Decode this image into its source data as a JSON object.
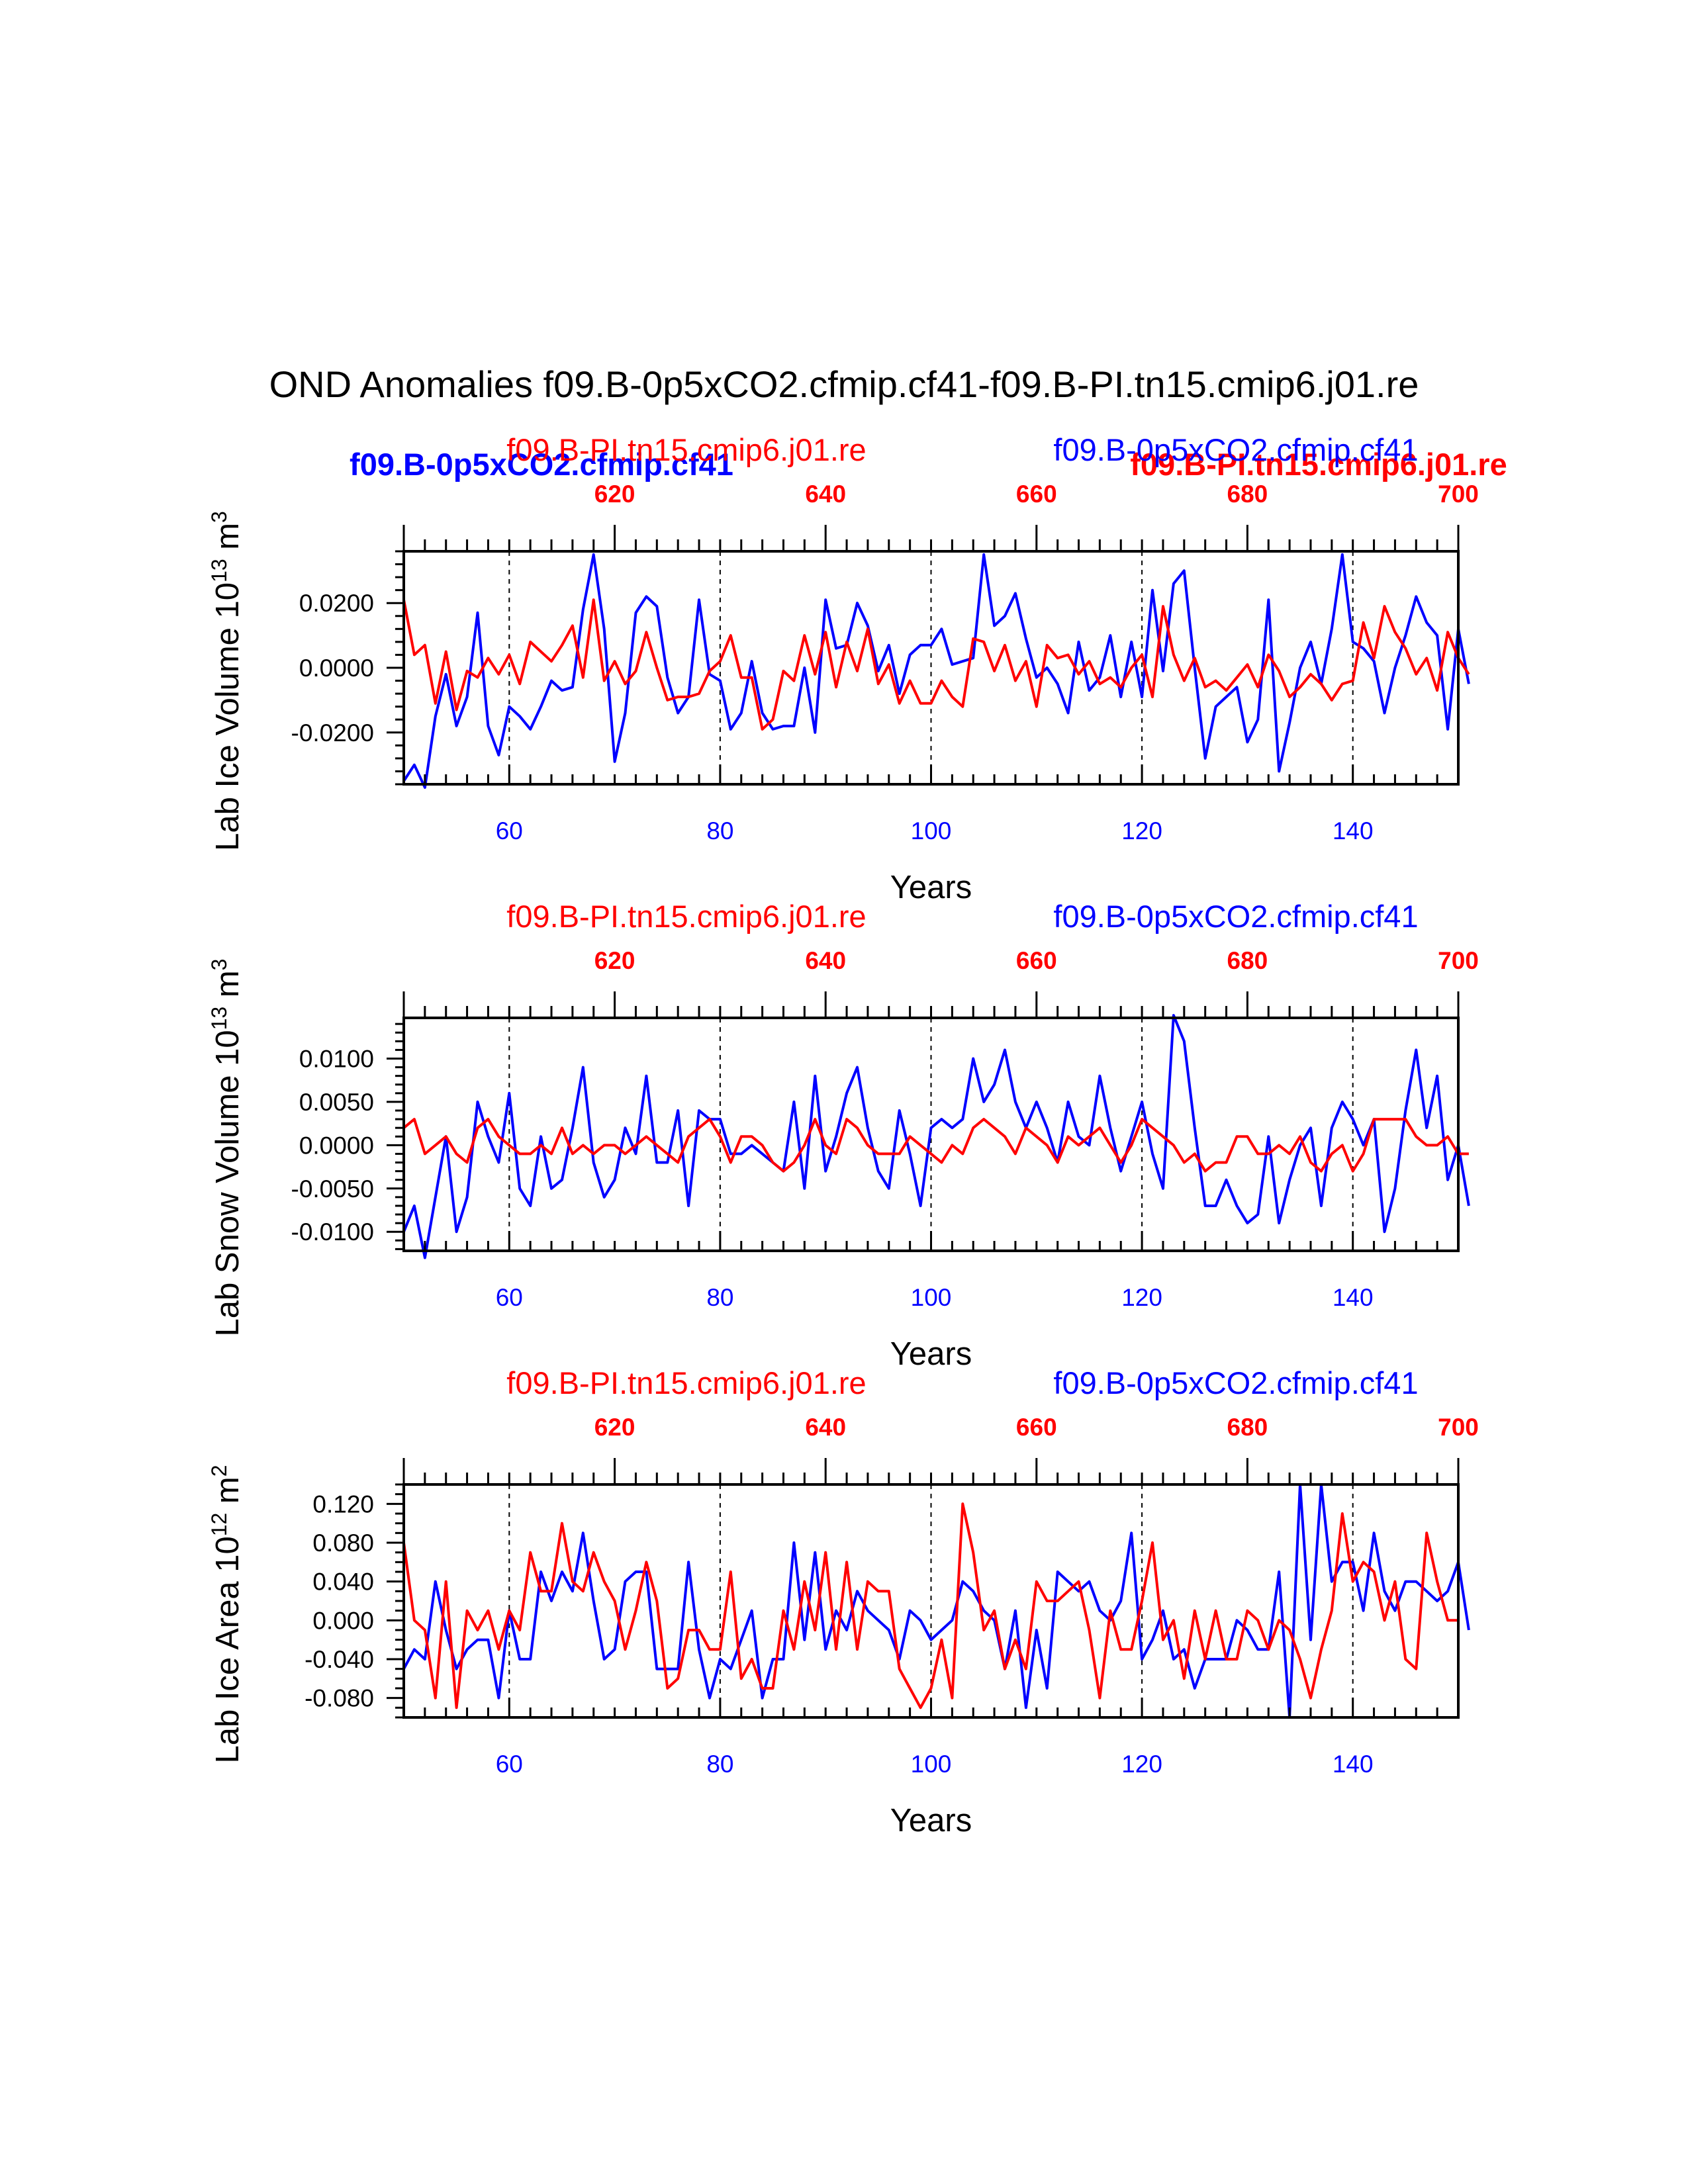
{
  "title": "OND Anomalies f09.B-0p5xCO2.cfmip.cf41-f09.B-PI.tn15.cmip6.j01.re",
  "colors": {
    "blue": "#0000ff",
    "red": "#ff0000",
    "black": "#000000"
  },
  "overlay_labels": {
    "blue": "f09.B-0p5xCO2.cfmip.cf41",
    "red": "f09.B-PI.tn15.cmip6.j01.re"
  },
  "chart_data": [
    {
      "type": "line",
      "ylabel_main": "Lab Ice Volume 10",
      "ylabel_exp": "13",
      "ylabel_unit": " m",
      "ylabel_unit_exp": "3",
      "xlabel": "Years",
      "top_left_label": "f09.B-PI.tn15.cmip6.j01.re",
      "top_right_label": "f09.B-0p5xCO2.cfmip.cf41",
      "xlim": [
        50,
        150
      ],
      "top_xlim": [
        600,
        700
      ],
      "ylim": [
        -0.036,
        0.036
      ],
      "yticks": [
        -0.02,
        0.0,
        0.02
      ],
      "ytick_labels": [
        "-0.0200",
        "0.0000",
        "0.0200"
      ],
      "yminor_step": 0.004,
      "bottom_ticks": [
        60,
        80,
        100,
        120,
        140
      ],
      "top_ticks": [
        620,
        640,
        660,
        680,
        700
      ],
      "vlines": [
        60,
        80,
        100,
        120,
        140
      ],
      "x_start": 50,
      "series": [
        {
          "name": "f09.B-0p5xCO2.cfmip.cf41",
          "color": "#0000ff",
          "values": [
            -0.035,
            -0.03,
            -0.037,
            -0.015,
            -0.002,
            -0.018,
            -0.009,
            0.017,
            -0.018,
            -0.027,
            -0.012,
            -0.015,
            -0.019,
            -0.012,
            -0.004,
            -0.007,
            -0.006,
            0.018,
            0.035,
            0.012,
            -0.029,
            -0.014,
            0.017,
            0.022,
            0.019,
            -0.003,
            -0.014,
            -0.009,
            0.021,
            -0.002,
            -0.004,
            -0.019,
            -0.014,
            0.002,
            -0.014,
            -0.019,
            -0.018,
            -0.018,
            0.0,
            -0.02,
            0.021,
            0.006,
            0.007,
            0.02,
            0.013,
            -0.001,
            0.007,
            -0.008,
            0.004,
            0.007,
            0.007,
            0.012,
            0.001,
            0.002,
            0.003,
            0.035,
            0.013,
            0.016,
            0.023,
            0.009,
            -0.003,
            0.0,
            -0.005,
            -0.014,
            0.008,
            -0.007,
            -0.003,
            0.01,
            -0.009,
            0.008,
            -0.009,
            0.024,
            -0.001,
            0.026,
            0.03,
            0.0,
            -0.028,
            -0.012,
            -0.009,
            -0.006,
            -0.023,
            -0.016,
            0.021,
            -0.032,
            -0.017,
            0.0,
            0.008,
            -0.005,
            0.012,
            0.035,
            0.008,
            0.006,
            0.002,
            -0.014,
            0.0,
            0.01,
            0.022,
            0.014,
            0.01,
            -0.019,
            0.012,
            -0.005
          ]
        },
        {
          "name": "f09.B-PI.tn15.cmip6.j01.re",
          "color": "#ff0000",
          "values": [
            0.021,
            0.004,
            0.007,
            -0.011,
            0.005,
            -0.013,
            -0.001,
            -0.003,
            0.003,
            -0.002,
            0.004,
            -0.005,
            0.008,
            0.005,
            0.002,
            0.007,
            0.013,
            -0.003,
            0.021,
            -0.004,
            0.002,
            -0.005,
            -0.001,
            0.011,
            0.0,
            -0.01,
            -0.009,
            -0.009,
            -0.008,
            -0.001,
            0.002,
            0.01,
            -0.003,
            -0.003,
            -0.019,
            -0.016,
            -0.001,
            -0.004,
            0.01,
            -0.002,
            0.011,
            -0.006,
            0.008,
            -0.001,
            0.012,
            -0.005,
            0.001,
            -0.011,
            -0.004,
            -0.011,
            -0.011,
            -0.004,
            -0.009,
            -0.012,
            0.009,
            0.008,
            -0.001,
            0.007,
            -0.004,
            0.002,
            -0.012,
            0.007,
            0.003,
            0.004,
            -0.002,
            0.002,
            -0.005,
            -0.003,
            -0.006,
            0.0,
            0.004,
            -0.009,
            0.019,
            0.004,
            -0.004,
            0.003,
            -0.006,
            -0.004,
            -0.007,
            -0.003,
            0.001,
            -0.006,
            0.004,
            -0.001,
            -0.009,
            -0.006,
            -0.002,
            -0.005,
            -0.01,
            -0.005,
            -0.004,
            0.014,
            0.003,
            0.019,
            0.011,
            0.006,
            -0.002,
            0.003,
            -0.007,
            0.011,
            0.003,
            -0.002
          ]
        }
      ]
    },
    {
      "type": "line",
      "ylabel_main": "Lab Snow Volume 10",
      "ylabel_exp": "13",
      "ylabel_unit": " m",
      "ylabel_unit_exp": "3",
      "xlabel": "Years",
      "top_left_label": "f09.B-PI.tn15.cmip6.j01.re",
      "top_right_label": "f09.B-0p5xCO2.cfmip.cf41",
      "xlim": [
        50,
        150
      ],
      "top_xlim": [
        600,
        700
      ],
      "ylim": [
        -0.0122,
        0.0147
      ],
      "yticks": [
        -0.01,
        -0.005,
        0.0,
        0.005,
        0.01
      ],
      "ytick_labels": [
        "-0.0100",
        "-0.0050",
        "0.0000",
        "0.0050",
        "0.0100"
      ],
      "yminor_step": 0.001,
      "bottom_ticks": [
        60,
        80,
        100,
        120,
        140
      ],
      "top_ticks": [
        620,
        640,
        660,
        680,
        700
      ],
      "vlines": [
        60,
        80,
        100,
        120,
        140
      ],
      "x_start": 50,
      "series": [
        {
          "name": "f09.B-0p5xCO2.cfmip.cf41",
          "color": "#0000ff",
          "values": [
            -0.01,
            -0.007,
            -0.013,
            -0.006,
            0.001,
            -0.01,
            -0.006,
            0.005,
            0.001,
            -0.002,
            0.006,
            -0.005,
            -0.007,
            0.001,
            -0.005,
            -0.004,
            0.002,
            0.009,
            -0.002,
            -0.006,
            -0.004,
            0.002,
            -0.001,
            0.008,
            -0.002,
            -0.002,
            0.004,
            -0.007,
            0.004,
            0.003,
            0.003,
            -0.001,
            -0.001,
            0.0,
            -0.001,
            -0.002,
            -0.003,
            0.005,
            -0.005,
            0.008,
            -0.003,
            0.001,
            0.006,
            0.009,
            0.002,
            -0.003,
            -0.005,
            0.004,
            -0.001,
            -0.007,
            0.002,
            0.003,
            0.002,
            0.003,
            0.01,
            0.005,
            0.007,
            0.011,
            0.005,
            0.002,
            0.005,
            0.002,
            -0.002,
            0.005,
            0.001,
            0.0,
            0.008,
            0.002,
            -0.003,
            0.001,
            0.005,
            -0.001,
            -0.005,
            0.015,
            0.012,
            0.002,
            -0.007,
            -0.007,
            -0.004,
            -0.007,
            -0.009,
            -0.008,
            0.001,
            -0.009,
            -0.004,
            0.0,
            0.002,
            -0.007,
            0.002,
            0.005,
            0.003,
            0.0,
            0.003,
            -0.01,
            -0.005,
            0.004,
            0.011,
            0.002,
            0.008,
            -0.004,
            0.0,
            -0.007
          ]
        },
        {
          "name": "f09.B-PI.tn15.cmip6.j01.re",
          "color": "#ff0000",
          "values": [
            0.002,
            0.003,
            -0.001,
            0.0,
            0.001,
            -0.001,
            -0.002,
            0.002,
            0.003,
            0.001,
            0.0,
            -0.001,
            -0.001,
            0.0,
            -0.001,
            0.002,
            -0.001,
            0.0,
            -0.001,
            0.0,
            0.0,
            -0.001,
            0.0,
            0.001,
            0.0,
            -0.001,
            -0.002,
            0.001,
            0.002,
            0.003,
            0.001,
            -0.002,
            0.001,
            0.001,
            0.0,
            -0.002,
            -0.003,
            -0.002,
            0.0,
            0.003,
            0.0,
            -0.001,
            0.003,
            0.002,
            0.0,
            -0.001,
            -0.001,
            -0.001,
            0.001,
            0.0,
            -0.001,
            -0.002,
            0.0,
            -0.001,
            0.002,
            0.003,
            0.002,
            0.001,
            -0.001,
            0.002,
            0.001,
            0.0,
            -0.002,
            0.001,
            0.0,
            0.001,
            0.002,
            0.0,
            -0.002,
            0.0,
            0.003,
            0.002,
            0.001,
            0.0,
            -0.002,
            -0.001,
            -0.003,
            -0.002,
            -0.002,
            0.001,
            0.001,
            -0.001,
            -0.001,
            0.0,
            -0.001,
            0.001,
            -0.002,
            -0.003,
            -0.001,
            0.0,
            -0.003,
            -0.001,
            0.003,
            0.003,
            0.003,
            0.003,
            0.001,
            0.0,
            0.0,
            0.001,
            -0.001,
            -0.001
          ]
        }
      ]
    },
    {
      "type": "line",
      "ylabel_main": "Lab Ice Area 10",
      "ylabel_exp": "12",
      "ylabel_unit": " m",
      "ylabel_unit_exp": "2",
      "xlabel": "Years",
      "top_left_label": "f09.B-PI.tn15.cmip6.j01.re",
      "top_right_label": "f09.B-0p5xCO2.cfmip.cf41",
      "xlim": [
        50,
        150
      ],
      "top_xlim": [
        600,
        700
      ],
      "ylim": [
        -0.1,
        0.14
      ],
      "yticks": [
        -0.08,
        -0.04,
        0.0,
        0.04,
        0.08,
        0.12
      ],
      "ytick_labels": [
        "-0.080",
        "-0.040",
        "0.000",
        "0.040",
        "0.080",
        "0.120"
      ],
      "yminor_step": 0.01,
      "bottom_ticks": [
        60,
        80,
        100,
        120,
        140
      ],
      "top_ticks": [
        620,
        640,
        660,
        680,
        700
      ],
      "vlines": [
        60,
        80,
        100,
        120,
        140
      ],
      "x_start": 50,
      "series": [
        {
          "name": "f09.B-0p5xCO2.cfmip.cf41",
          "color": "#0000ff",
          "values": [
            -0.05,
            -0.03,
            -0.04,
            0.04,
            -0.01,
            -0.05,
            -0.03,
            -0.02,
            -0.02,
            -0.08,
            0.01,
            -0.04,
            -0.04,
            0.05,
            0.02,
            0.05,
            0.03,
            0.09,
            0.02,
            -0.04,
            -0.03,
            0.04,
            0.05,
            0.05,
            -0.05,
            -0.05,
            -0.05,
            0.06,
            -0.03,
            -0.08,
            -0.04,
            -0.05,
            -0.02,
            0.01,
            -0.08,
            -0.04,
            -0.04,
            0.08,
            -0.02,
            0.07,
            -0.03,
            0.01,
            -0.01,
            0.03,
            0.01,
            0.0,
            -0.01,
            -0.04,
            0.01,
            0.0,
            -0.02,
            -0.01,
            0.0,
            0.04,
            0.03,
            0.01,
            0.0,
            -0.05,
            0.01,
            -0.09,
            -0.01,
            -0.07,
            0.05,
            0.04,
            0.03,
            0.04,
            0.01,
            0.0,
            0.02,
            0.09,
            -0.04,
            -0.02,
            0.01,
            -0.04,
            -0.03,
            -0.07,
            -0.04,
            -0.04,
            -0.04,
            0.0,
            -0.01,
            -0.03,
            -0.03,
            0.05,
            -0.1,
            0.14,
            -0.02,
            0.14,
            0.04,
            0.06,
            0.06,
            0.01,
            0.09,
            0.03,
            0.01,
            0.04,
            0.04,
            0.03,
            0.02,
            0.03,
            0.06,
            -0.01
          ]
        },
        {
          "name": "f09.B-PI.tn15.cmip6.j01.re",
          "color": "#ff0000",
          "values": [
            0.08,
            0.0,
            -0.01,
            -0.08,
            0.04,
            -0.09,
            0.01,
            -0.01,
            0.01,
            -0.03,
            0.01,
            -0.01,
            0.07,
            0.03,
            0.03,
            0.1,
            0.04,
            0.03,
            0.07,
            0.04,
            0.02,
            -0.03,
            0.01,
            0.06,
            0.02,
            -0.07,
            -0.06,
            -0.01,
            -0.01,
            -0.03,
            -0.03,
            0.05,
            -0.06,
            -0.04,
            -0.07,
            -0.07,
            0.01,
            -0.03,
            0.04,
            -0.01,
            0.07,
            -0.03,
            0.06,
            -0.03,
            0.04,
            0.03,
            0.03,
            -0.05,
            -0.07,
            -0.09,
            -0.07,
            -0.02,
            -0.08,
            0.12,
            0.07,
            -0.01,
            0.01,
            -0.05,
            -0.02,
            -0.05,
            0.04,
            0.02,
            0.02,
            0.03,
            0.04,
            -0.01,
            -0.08,
            0.01,
            -0.03,
            -0.03,
            0.02,
            0.08,
            -0.02,
            0.0,
            -0.06,
            0.01,
            -0.04,
            0.01,
            -0.04,
            -0.04,
            0.01,
            0.0,
            -0.03,
            0.0,
            -0.01,
            -0.04,
            -0.08,
            -0.03,
            0.01,
            0.11,
            0.04,
            0.06,
            0.05,
            0.0,
            0.04,
            -0.04,
            -0.05,
            0.09,
            0.04,
            0.0,
            0.0
          ]
        }
      ]
    }
  ]
}
